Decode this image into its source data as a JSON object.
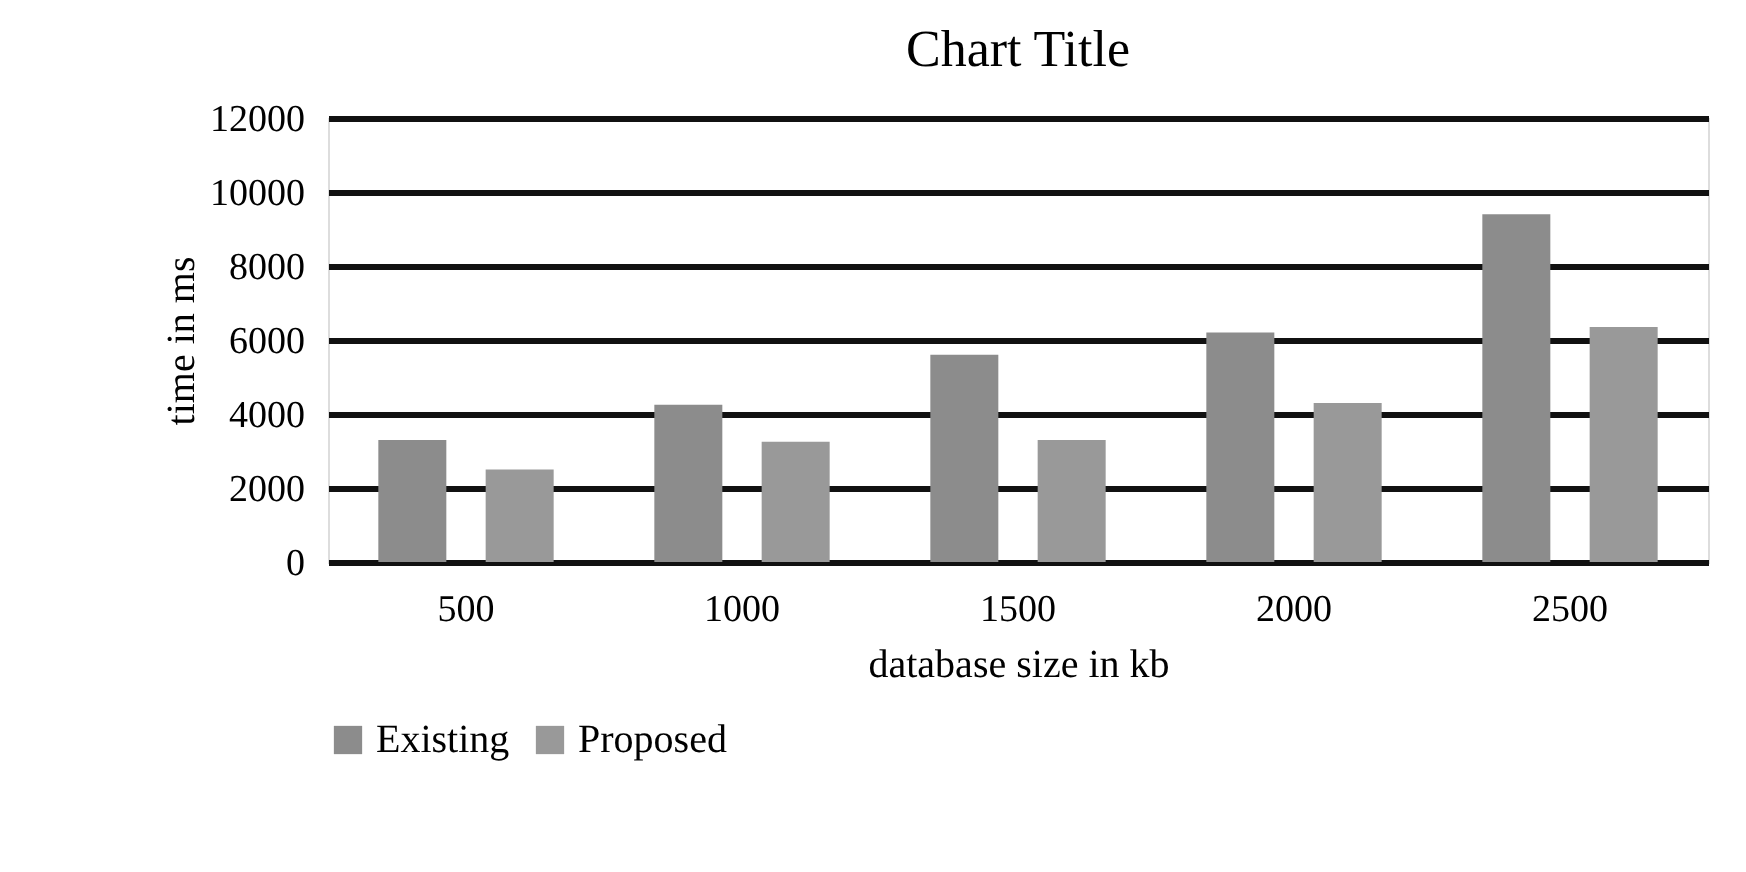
{
  "chart_data": {
    "type": "bar",
    "title": "Chart Title",
    "xlabel": "database size in kb",
    "ylabel": "time in ms",
    "categories": [
      "500",
      "1000",
      "1500",
      "2000",
      "2500"
    ],
    "series": [
      {
        "name": "Existing",
        "color": "#8c8c8c",
        "values": [
          3300,
          4250,
          5600,
          6200,
          9400
        ]
      },
      {
        "name": "Proposed",
        "color": "#999999",
        "values": [
          2500,
          3250,
          3300,
          4300,
          6350
        ]
      }
    ],
    "ylim": [
      0,
      12000
    ],
    "yticks": [
      0,
      2000,
      4000,
      6000,
      8000,
      10000,
      12000
    ],
    "grid": "y",
    "legend": "bottom"
  }
}
